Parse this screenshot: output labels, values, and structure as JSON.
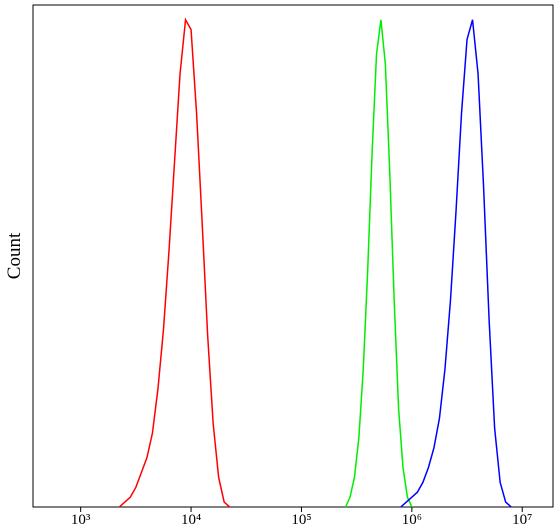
{
  "chart_data": {
    "type": "line",
    "y_label": "Count",
    "log_x": true,
    "xlim": [
      370,
      19000000
    ],
    "ylim": [
      0,
      102
    ],
    "xticks": [
      {
        "value": 1000,
        "label": "10³"
      },
      {
        "value": 10000,
        "label": "10⁴"
      },
      {
        "value": 100000,
        "label": "10⁵"
      },
      {
        "value": 1000000,
        "label": "10⁶"
      },
      {
        "value": 10000000,
        "label": "10⁷"
      }
    ],
    "series": [
      {
        "color": "#ff0000",
        "x": [
          2239,
          2512,
          2818,
          3162,
          3548,
          3981,
          4467,
          5012,
          5623,
          6310,
          7079,
          7943,
          8913,
          10000,
          11220,
          12589,
          14125,
          15849,
          17783,
          19953,
          22387
        ],
        "values": [
          0,
          1,
          2,
          4,
          7,
          10,
          15,
          24,
          36,
          52,
          70,
          88,
          99,
          97,
          80,
          58,
          35,
          17,
          6,
          1,
          0
        ]
      },
      {
        "color": "#00ee00",
        "x": [
          251189,
          275423,
          301995,
          331131,
          363078,
          398107,
          436516,
          478630,
          524807,
          575440,
          630957,
          691831,
          758578,
          831764,
          912011,
          1000000
        ],
        "values": [
          0,
          2,
          6,
          14,
          28,
          48,
          72,
          92,
          99,
          90,
          68,
          42,
          20,
          8,
          2,
          0
        ]
      },
      {
        "color": "#0000ff",
        "x": [
          794328,
          891251,
          1000000,
          1122018,
          1258925,
          1412538,
          1584893,
          1778279,
          1995262,
          2238721,
          2511886,
          2818383,
          3162278,
          3548134,
          3981072,
          4466836,
          5011872,
          5623413,
          6309573,
          7079458,
          7943282
        ],
        "values": [
          0,
          1,
          2,
          3,
          5,
          8,
          12,
          18,
          28,
          42,
          60,
          80,
          95,
          99,
          88,
          65,
          38,
          16,
          5,
          1,
          0
        ]
      }
    ]
  }
}
